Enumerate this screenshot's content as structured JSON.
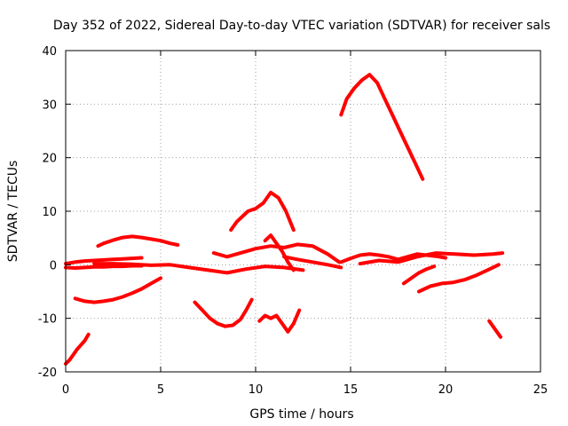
{
  "chart_data": {
    "type": "scatter",
    "title": "Day 352 of 2022, Sidereal Day-to-day VTEC variation (SDTVAR) for receiver sals",
    "xlabel": "GPS time / hours",
    "ylabel": "SDTVAR / TECUs",
    "xlim": [
      0,
      25
    ],
    "ylim": [
      -20,
      40
    ],
    "xticks": [
      0,
      5,
      10,
      15,
      20,
      25
    ],
    "yticks": [
      -20,
      -10,
      0,
      10,
      20,
      30,
      40
    ],
    "grid": true,
    "series_color": "#ff0000",
    "series": [
      {
        "name": "s1",
        "x": [
          0,
          0.2,
          0.4,
          0.6,
          0.8,
          1.0,
          1.2
        ],
        "y": [
          -18.5,
          -17.8,
          -16.8,
          -15.8,
          -15,
          -14.2,
          -13
        ]
      },
      {
        "name": "s2",
        "x": [
          0,
          0.5,
          1,
          1.5,
          2,
          2.5,
          3,
          3.5,
          4
        ],
        "y": [
          -0.5,
          -0.6,
          -0.5,
          -0.4,
          -0.4,
          -0.3,
          -0.3,
          -0.2,
          -0.2
        ]
      },
      {
        "name": "s3",
        "x": [
          0,
          0.5,
          1,
          1.5,
          2,
          2.5,
          3,
          3.5,
          4
        ],
        "y": [
          0.2,
          0.5,
          0.7,
          0.8,
          0.9,
          1,
          1.1,
          1.2,
          1.3
        ]
      },
      {
        "name": "s4",
        "x": [
          0.5,
          1,
          1.5,
          2,
          2.5,
          3,
          3.5,
          4,
          4.5,
          5
        ],
        "y": [
          -6.3,
          -6.8,
          -7,
          -6.8,
          -6.5,
          -6,
          -5.3,
          -4.5,
          -3.5,
          -2.5
        ]
      },
      {
        "name": "s5",
        "x": [
          1.7,
          2,
          2.5,
          3,
          3.5,
          4,
          4.5,
          5,
          5.5,
          5.9
        ],
        "y": [
          3.5,
          4,
          4.6,
          5.1,
          5.3,
          5.1,
          4.8,
          4.5,
          4,
          3.7
        ]
      },
      {
        "name": "s6",
        "x": [
          1.5,
          2.5,
          3.5,
          4.5,
          5.5,
          6.5,
          7.5,
          8.5,
          9.5,
          10.5,
          11.5,
          12.5
        ],
        "y": [
          0.2,
          0.2,
          0.1,
          -0.1,
          0,
          -0.5,
          -1,
          -1.5,
          -0.8,
          -0.3,
          -0.5,
          -1
        ]
      },
      {
        "name": "s7",
        "x": [
          6.8,
          7.2,
          7.6,
          8.0,
          8.4,
          8.8,
          9.2,
          9.5,
          9.8
        ],
        "y": [
          -7,
          -8.5,
          -10,
          -11,
          -11.5,
          -11.3,
          -10.2,
          -8.5,
          -6.5
        ]
      },
      {
        "name": "s8",
        "x": [
          8.7,
          9.0,
          9.3,
          9.6,
          10.0,
          10.4,
          10.8,
          11.2,
          11.6,
          12.0
        ],
        "y": [
          6.5,
          8,
          9,
          10,
          10.5,
          11.5,
          13.5,
          12.5,
          10,
          6.5
        ]
      },
      {
        "name": "s9",
        "x": [
          10.2,
          10.5,
          10.8,
          11.1,
          11.4,
          11.7,
          12,
          12.3
        ],
        "y": [
          -10.5,
          -9.5,
          -10,
          -9.5,
          -11,
          -12.5,
          -11,
          -8.5
        ]
      },
      {
        "name": "s10",
        "x": [
          7.8,
          8.5,
          9.2,
          10,
          10.8,
          11.5,
          12.2,
          13,
          13.8,
          14.4
        ],
        "y": [
          2.2,
          1.5,
          2.2,
          3,
          3.5,
          3.2,
          3.8,
          3.5,
          2,
          0.5
        ]
      },
      {
        "name": "s11",
        "x": [
          10.5,
          10.8,
          11.1,
          11.4,
          11.7,
          12.0
        ],
        "y": [
          4.5,
          5.5,
          4,
          2.5,
          0.5,
          -1
        ]
      },
      {
        "name": "s12",
        "x": [
          14.5,
          14.8,
          15.2,
          15.6,
          16,
          16.4,
          16.8,
          17.2,
          17.6,
          18,
          18.4,
          18.8
        ],
        "y": [
          28,
          31,
          33,
          34.5,
          35.5,
          34,
          31,
          28,
          25,
          22,
          19,
          16
        ]
      },
      {
        "name": "s13",
        "x": [
          14.5,
          15,
          15.5,
          16,
          16.5,
          17,
          17.5,
          18,
          18.5,
          19,
          19.5,
          20
        ],
        "y": [
          0.5,
          1.2,
          1.8,
          2,
          1.8,
          1.5,
          1,
          1.5,
          2,
          1.8,
          1.6,
          1.3
        ]
      },
      {
        "name": "s14",
        "x": [
          15.5,
          16.5,
          17.5,
          18.5,
          19.5,
          20.5,
          21.5,
          22.5,
          23
        ],
        "y": [
          0.2,
          0.8,
          0.5,
          1.5,
          2.2,
          2,
          1.8,
          2,
          2.2
        ]
      },
      {
        "name": "s15",
        "x": [
          17.8,
          18.2,
          18.6,
          19,
          19.4
        ],
        "y": [
          -3.5,
          -2.5,
          -1.5,
          -0.8,
          -0.3
        ]
      },
      {
        "name": "s16",
        "x": [
          18.6,
          19.2,
          19.8,
          20.4,
          21,
          21.6,
          22.2,
          22.8
        ],
        "y": [
          -5,
          -4,
          -3.5,
          -3.3,
          -2.8,
          -2,
          -1,
          0
        ]
      },
      {
        "name": "s17",
        "x": [
          22.3,
          22.6,
          22.9
        ],
        "y": [
          -10.5,
          -12,
          -13.5
        ]
      },
      {
        "name": "s18",
        "x": [
          11.5,
          12.2,
          13,
          13.8,
          14.5
        ],
        "y": [
          1.5,
          1,
          0.5,
          0,
          -0.5
        ]
      }
    ]
  }
}
